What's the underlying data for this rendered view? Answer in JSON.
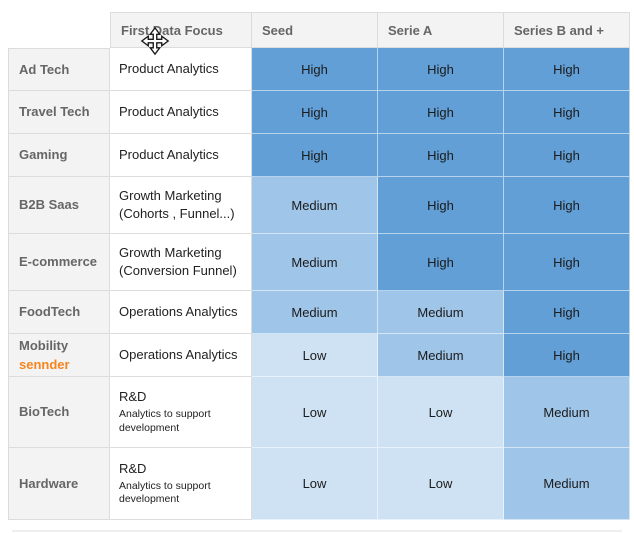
{
  "table": {
    "columns": [
      "",
      "First Data Focus",
      "Seed",
      "Serie A",
      "Series B and +"
    ],
    "rows": [
      {
        "industry": "Ad Tech",
        "industry_note": "",
        "focus_main": "Product Analytics",
        "focus_sub": "",
        "focus_sub_small": false,
        "levels": [
          "High",
          "High",
          "High"
        ]
      },
      {
        "industry": "Travel Tech",
        "industry_note": "",
        "focus_main": "Product Analytics",
        "focus_sub": "",
        "focus_sub_small": false,
        "levels": [
          "High",
          "High",
          "High"
        ]
      },
      {
        "industry": "Gaming",
        "industry_note": "",
        "focus_main": "Product Analytics",
        "focus_sub": "",
        "focus_sub_small": false,
        "levels": [
          "High",
          "High",
          "High"
        ]
      },
      {
        "industry": "B2B Saas",
        "industry_note": "",
        "focus_main": "Growth Marketing",
        "focus_sub": "(Cohorts , Funnel...)",
        "focus_sub_small": false,
        "levels": [
          "Medium",
          "High",
          "High"
        ]
      },
      {
        "industry": "E-commerce",
        "industry_note": "",
        "focus_main": "Growth Marketing",
        "focus_sub": "(Conversion Funnel)",
        "focus_sub_small": false,
        "levels": [
          "Medium",
          "High",
          "High"
        ]
      },
      {
        "industry": "FoodTech",
        "industry_note": "",
        "focus_main": "Operations Analytics",
        "focus_sub": "",
        "focus_sub_small": false,
        "levels": [
          "Medium",
          "Medium",
          "High"
        ]
      },
      {
        "industry": "Mobility",
        "industry_note": "sennder",
        "focus_main": "Operations Analytics",
        "focus_sub": "",
        "focus_sub_small": false,
        "levels": [
          "Low",
          "Medium",
          "High"
        ]
      },
      {
        "industry": "BioTech",
        "industry_note": "",
        "focus_main": "R&D",
        "focus_sub": "Analytics to support development",
        "focus_sub_small": true,
        "levels": [
          "Low",
          "Low",
          "Medium"
        ]
      },
      {
        "industry": "Hardware",
        "industry_note": "",
        "focus_main": "R&D",
        "focus_sub": "Analytics to support development",
        "focus_sub_small": true,
        "levels": [
          "Low",
          "Low",
          "Medium"
        ]
      }
    ],
    "level_colors": {
      "High": "#619fd6",
      "Medium": "#9fc5e8",
      "Low": "#cfe2f3"
    },
    "accent_orange": "#f6851f",
    "header_bg": "#f3f3f3"
  },
  "cursor": {
    "name": "move-cursor"
  }
}
